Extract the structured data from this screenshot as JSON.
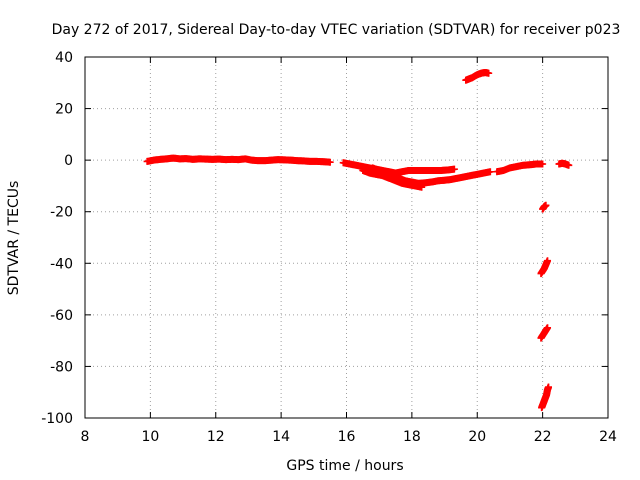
{
  "chart_data": {
    "type": "scatter",
    "title": "Day 272 of 2017, Sidereal Day-to-day VTEC variation (SDTVAR) for receiver p023",
    "xlabel": "GPS time / hours",
    "ylabel": "SDTVAR / TECUs",
    "xlim": [
      8,
      24
    ],
    "ylim": [
      -100,
      40
    ],
    "xticks": [
      8,
      10,
      12,
      14,
      16,
      18,
      20,
      22,
      24
    ],
    "yticks": [
      -100,
      -80,
      -60,
      -40,
      -20,
      0,
      20,
      40
    ],
    "grid": true,
    "marker": "plus",
    "color": "#ff0000",
    "series": [
      {
        "name": "trace-near-zero-morning",
        "x": [
          9.9,
          10.1,
          10.3,
          10.5,
          10.7,
          10.9,
          11.1,
          11.3,
          11.5,
          11.7,
          11.9,
          12.1,
          12.3,
          12.5,
          12.7,
          12.9,
          13.1,
          13.3,
          13.5,
          13.7,
          13.9,
          14.1,
          14.3,
          14.5,
          14.7,
          14.9,
          15.1,
          15.3,
          15.5
        ],
        "y": [
          -0.5,
          0,
          0.3,
          0.5,
          0.8,
          0.5,
          0.6,
          0.3,
          0.5,
          0.4,
          0.3,
          0.4,
          0.2,
          0.3,
          0.2,
          0.5,
          0,
          -0.2,
          -0.2,
          0,
          0.2,
          0.1,
          0,
          -0.2,
          -0.3,
          -0.5,
          -0.5,
          -0.6,
          -0.8
        ]
      },
      {
        "name": "trace-dip-upper",
        "x": [
          15.9,
          16.1,
          16.3,
          16.5,
          16.7,
          16.9,
          17.1,
          17.3,
          17.5,
          17.7,
          17.9,
          18.1,
          18.3,
          18.5,
          18.7,
          18.9,
          19.1,
          19.3
        ],
        "y": [
          -1,
          -1.5,
          -2,
          -2.5,
          -3,
          -3.5,
          -4,
          -4.5,
          -5,
          -4.5,
          -4,
          -4,
          -4,
          -4,
          -4,
          -4,
          -3.8,
          -3.5
        ]
      },
      {
        "name": "trace-dip-lower",
        "x": [
          16.5,
          16.7,
          16.9,
          17.1,
          17.3,
          17.5,
          17.7,
          17.9,
          18.1,
          18.3
        ],
        "y": [
          -4,
          -5,
          -5.5,
          -6,
          -7,
          -8,
          -9,
          -9.5,
          -10,
          -10.5
        ]
      },
      {
        "name": "trace-dip-middle",
        "x": [
          16.8,
          17.0,
          17.2,
          17.4,
          17.6,
          17.8,
          18.0,
          18.2,
          18.4,
          18.6,
          18.8,
          19.0,
          19.2,
          19.4,
          19.6,
          19.8,
          20.0,
          20.2,
          20.4
        ],
        "y": [
          -3,
          -4,
          -5,
          -6,
          -7,
          -8,
          -8.5,
          -9,
          -8.8,
          -8.5,
          -8,
          -7.8,
          -7.5,
          -7,
          -6.5,
          -6,
          -5.5,
          -5,
          -4.5
        ]
      },
      {
        "name": "trace-late-afternoon",
        "x": [
          20.6,
          20.8,
          21.0,
          21.2,
          21.4,
          21.6,
          21.8,
          22.0
        ],
        "y": [
          -4.5,
          -4,
          -3,
          -2.5,
          -2,
          -1.8,
          -1.5,
          -1.5
        ]
      },
      {
        "name": "trace-end-of-day",
        "x": [
          22.5,
          22.6,
          22.7,
          22.8
        ],
        "y": [
          -1.5,
          -1.2,
          -1.5,
          -2
        ]
      },
      {
        "name": "trace-high-arc",
        "x": [
          19.65,
          19.75,
          19.85,
          19.95,
          20.05,
          20.15,
          20.25,
          20.35
        ],
        "y": [
          31,
          31.5,
          32,
          32.8,
          33.4,
          33.8,
          34,
          33.7
        ]
      },
      {
        "name": "trace-drop-1",
        "x": [
          22.0,
          22.05,
          22.1
        ],
        "y": [
          -19,
          -18,
          -17.5
        ]
      },
      {
        "name": "trace-drop-2",
        "x": [
          21.95,
          22.0,
          22.05,
          22.1,
          22.15
        ],
        "y": [
          -44,
          -43,
          -42,
          -40.5,
          -39
        ]
      },
      {
        "name": "trace-drop-3",
        "x": [
          21.95,
          22.0,
          22.05,
          22.1,
          22.15
        ],
        "y": [
          -69,
          -68,
          -67,
          -66,
          -65
        ]
      },
      {
        "name": "trace-drop-4",
        "x": [
          21.97,
          22.0,
          22.03,
          22.06,
          22.09,
          22.12,
          22.15,
          22.18
        ],
        "y": [
          -96,
          -95,
          -94,
          -93,
          -92,
          -91,
          -89,
          -88
        ]
      }
    ]
  }
}
